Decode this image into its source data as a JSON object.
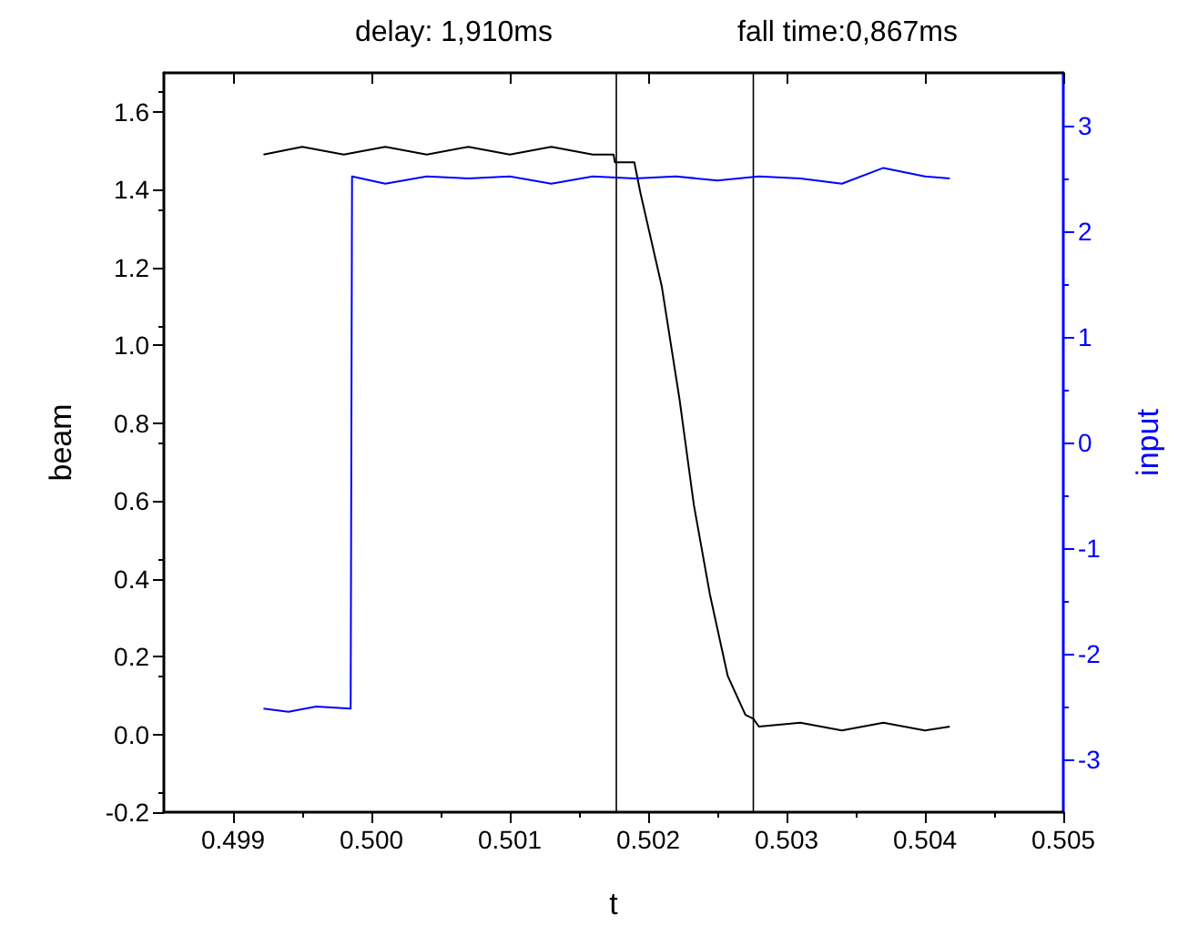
{
  "chart_data": {
    "type": "line",
    "xlabel": "t",
    "ylabel": "beam",
    "y2label": "input",
    "annotations": [
      "delay: 1,910ms",
      "fall time:0,867ms"
    ],
    "xlim": [
      0.4985,
      0.505
    ],
    "xticks": [
      0.499,
      {
        "value": 0.5,
        "label": "0.500"
      },
      0.501,
      0.502,
      0.503,
      0.504,
      0.505
    ],
    "ylim": [
      -0.2,
      1.7
    ],
    "yticks": [
      -0.2,
      {
        "value": 0,
        "label": "0.0"
      },
      0.2,
      0.4,
      0.6,
      0.8,
      {
        "value": 1,
        "label": "1.0"
      },
      1.2,
      1.4,
      1.6
    ],
    "y2lim": [
      -3.5,
      3.5
    ],
    "y2ticks": [
      -3,
      -2,
      -1,
      0,
      1,
      2,
      3
    ],
    "grid": false,
    "marker": "none",
    "line_style": "solid",
    "ref_lines": [
      {
        "axis": "x",
        "value": 0.50177,
        "color": "#000000"
      },
      {
        "axis": "x",
        "value": 0.50276,
        "color": "#000000"
      }
    ],
    "series": [
      {
        "color": "#000000",
        "x": [
          0.49922,
          0.4995,
          0.4998,
          0.5001,
          0.5004,
          0.5007,
          0.501,
          0.5013,
          0.5016,
          0.50175,
          0.50176,
          0.5019,
          0.501945,
          0.502099,
          0.502227,
          0.50233,
          0.502446,
          0.502575,
          0.502703,
          0.50276,
          0.5028,
          0.5031,
          0.5034,
          0.5037,
          0.504,
          0.50418
        ],
        "values": [
          1.49,
          1.51,
          1.49,
          1.51,
          1.49,
          1.51,
          1.49,
          1.51,
          1.49,
          1.49,
          1.47,
          1.47,
          1.39,
          1.15,
          0.86,
          0.59,
          0.36,
          0.15,
          0.05,
          0.04,
          0.02,
          0.03,
          0.01,
          0.03,
          0.01,
          0.02
        ]
      },
      {
        "color": "#0000ff",
        "axis": "y2",
        "x": [
          0.49922,
          0.4994,
          0.4996,
          0.49985,
          0.49986,
          0.5001,
          0.5004,
          0.5007,
          0.501,
          0.5013,
          0.5016,
          0.5019,
          0.5022,
          0.5025,
          0.5028,
          0.5031,
          0.5034,
          0.5037,
          0.504,
          0.50418
        ],
        "values": [
          -2.52,
          -2.55,
          -2.5,
          -2.52,
          2.52,
          2.45,
          2.52,
          2.5,
          2.52,
          2.45,
          2.52,
          2.5,
          2.52,
          2.48,
          2.52,
          2.5,
          2.45,
          2.6,
          2.52,
          2.5
        ]
      }
    ]
  }
}
